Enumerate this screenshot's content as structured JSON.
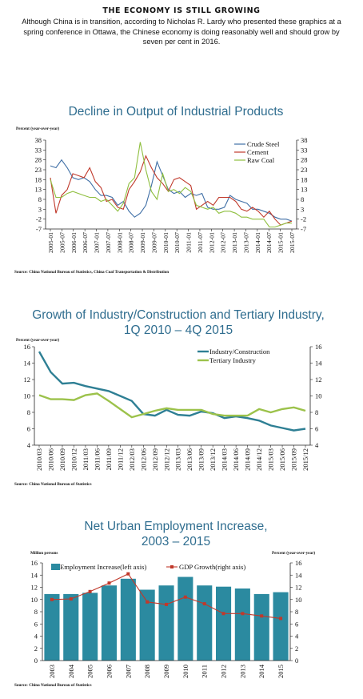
{
  "article": {
    "headline": "THE ECONOMY IS STILL GROWING",
    "subhead": "Although China is in transition, according to Nicholas R. Lardy who presented these graphics at a spring conference in Ottawa, the Chinese economy is doing reasonably well and should grow by seven per cent in 2016."
  },
  "chart_data": [
    {
      "type": "line",
      "title": "Decline in Output of Industrial Products",
      "ylabel": "Percent (year-over-year)",
      "ylim": [
        -7,
        38
      ],
      "yticks": [
        "38",
        "33",
        "28",
        "23",
        "18",
        "13",
        "8",
        "3",
        "-2",
        "-7"
      ],
      "xticks": [
        "2005-01",
        "2005-07",
        "2006-01",
        "2006-07",
        "2007-01",
        "2007-07",
        "2008-01",
        "2008-07",
        "2009-01",
        "2009-07",
        "2010-01",
        "2010-07",
        "2011-01",
        "2011-07",
        "2012-01",
        "2012-07",
        "2013-01",
        "2013-07",
        "2014-01",
        "2014-07",
        "2015-01",
        "2015-07"
      ],
      "legend_position": "top-right",
      "source": "Source: China National Bureau of Statistics, China Coal Transportation & Distribution",
      "colors": {
        "Crude Steel": "#3f6fa6",
        "Cement": "#c0392b",
        "Raw Coal": "#8fbf3f"
      },
      "series": [
        {
          "name": "Crude Steel",
          "values": [
            25,
            24,
            28,
            24,
            19,
            18,
            19,
            17,
            13,
            10,
            10,
            9,
            5,
            7,
            2,
            -1,
            1,
            5,
            15,
            27,
            20,
            13,
            11,
            12,
            9,
            11,
            10,
            11,
            4,
            3,
            3,
            4,
            10,
            8,
            7,
            6,
            3,
            3,
            2,
            1,
            -1,
            -2,
            -2,
            -3
          ]
        },
        {
          "name": "Cement",
          "values": [
            19,
            1,
            10,
            13,
            21,
            20,
            19,
            24,
            17,
            14,
            7,
            8,
            4,
            3,
            13,
            17,
            22,
            30,
            24,
            19,
            16,
            12,
            18,
            19,
            17,
            15,
            3,
            5,
            7,
            5,
            9,
            9,
            9,
            7,
            3,
            2,
            4,
            2,
            -1,
            2,
            -2,
            -5,
            -4,
            -3
          ]
        },
        {
          "name": "Raw Coal",
          "values": [
            18,
            9,
            9,
            11,
            12,
            11,
            10,
            9,
            9,
            7,
            8,
            5,
            2,
            6,
            16,
            19,
            37,
            23,
            12,
            8,
            21,
            12,
            13,
            11,
            14,
            12,
            5,
            4,
            3,
            4,
            1,
            2,
            2,
            1,
            -1,
            -1,
            -2,
            -2,
            -2,
            -6,
            -6,
            -5,
            -4,
            -4
          ]
        }
      ]
    },
    {
      "type": "line",
      "title": "Growth of Industry/Construction and Tertiary Industry, 1Q 2010 – 4Q 2015",
      "ylabel": "Percent (year-over-year)",
      "ylim": [
        4,
        16
      ],
      "yticks": [
        "16",
        "14",
        "12",
        "10",
        "8",
        "6",
        "4"
      ],
      "x": [
        "2010/03",
        "2010/06",
        "2010/09",
        "2010/12",
        "2011/03",
        "2011/06",
        "2011/09",
        "2011/12",
        "2012/03",
        "2012/06",
        "2012/09",
        "2012/12",
        "2013/03",
        "2013/06",
        "2013/09",
        "2013/12",
        "2014/03",
        "2014/06",
        "2014/09",
        "2014/12",
        "2015/03",
        "2015/06",
        "2015/09",
        "2015/12"
      ],
      "legend_position": "top-right",
      "source": "Source: China National Bureau of Statistics",
      "colors": {
        "Industry/Construction": "#2e7f94",
        "Tertiary Industry": "#9cc24b"
      },
      "series": [
        {
          "name": "Industry/Construction",
          "values": [
            15.4,
            12.9,
            11.5,
            11.6,
            11.2,
            10.9,
            10.6,
            10.0,
            9.4,
            7.8,
            7.6,
            8.3,
            7.7,
            7.6,
            8.1,
            7.9,
            7.3,
            7.5,
            7.3,
            7.0,
            6.4,
            6.1,
            5.8,
            6.0
          ]
        },
        {
          "name": "Tertiary Industry",
          "values": [
            10.1,
            9.6,
            9.6,
            9.5,
            10.1,
            10.3,
            9.4,
            8.4,
            7.4,
            7.8,
            8.2,
            8.5,
            8.3,
            8.3,
            8.3,
            7.8,
            7.6,
            7.6,
            7.6,
            8.4,
            8.0,
            8.4,
            8.6,
            8.2
          ]
        }
      ]
    },
    {
      "type": "bar",
      "title": "Net Urban Employment Increase, 2003 – 2015",
      "ylabel": "Million persons",
      "y2label": "Percent (year-over-year)",
      "ylim": [
        0,
        16
      ],
      "y2lim": [
        0,
        16
      ],
      "yticks": [
        "16",
        "14",
        "12",
        "10",
        "8",
        "6",
        "4",
        "2",
        "0"
      ],
      "categories": [
        "2003",
        "2004",
        "2005",
        "2006",
        "2007",
        "2008",
        "2009",
        "2010",
        "2011",
        "2012",
        "2013",
        "2014",
        "2015"
      ],
      "legend_position": "top",
      "source": "Source: China National Bureau of Statistics",
      "colors": {
        "Employment Increase(left axis)": "#2b8aa0",
        "GDP Growth(right axis)": "#c0392b"
      },
      "series": [
        {
          "name": "Employment Increase(left axis)",
          "axis": "left",
          "values": [
            10.9,
            10.9,
            11.1,
            12.3,
            13.4,
            11.6,
            12.3,
            13.7,
            12.3,
            12.1,
            11.8,
            10.9,
            11.2
          ]
        },
        {
          "name": "GDP Growth(right axis)",
          "axis": "right",
          "values": [
            10.0,
            10.1,
            11.3,
            12.7,
            14.2,
            9.6,
            9.2,
            10.4,
            9.3,
            7.7,
            7.7,
            7.3,
            6.9
          ]
        }
      ]
    }
  ]
}
